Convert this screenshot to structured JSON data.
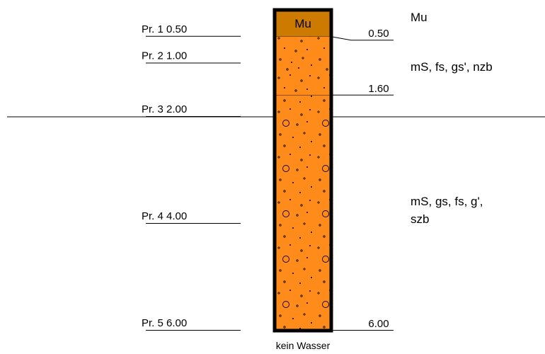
{
  "colors": {
    "topsoil": "#CC7A00",
    "sand": "#FF8C1A",
    "line": "#000000"
  },
  "samples": [
    {
      "name": "Pr. 1",
      "depth": "0.50",
      "depth_m": 0.5
    },
    {
      "name": "Pr. 2",
      "depth": "1.00",
      "depth_m": 1.0
    },
    {
      "name": "Pr. 3",
      "depth": "2.00",
      "depth_m": 2.0
    },
    {
      "name": "Pr. 4",
      "depth": "4.00",
      "depth_m": 4.0
    },
    {
      "name": "Pr. 5",
      "depth": "6.00",
      "depth_m": 6.0
    }
  ],
  "layers": [
    {
      "top_m": 0.0,
      "bottom_m": 0.5,
      "code": "Mu",
      "fill": "topsoil",
      "pattern": "none",
      "bottom_label": "0.50",
      "description": [
        "Mu"
      ]
    },
    {
      "top_m": 0.5,
      "bottom_m": 1.6,
      "code": "",
      "fill": "sand",
      "pattern": "dots",
      "bottom_label": "1.60",
      "description": [
        "mS, fs, gs', nzb"
      ]
    },
    {
      "top_m": 1.6,
      "bottom_m": 6.0,
      "code": "",
      "fill": "sand",
      "pattern": "dots-gravel",
      "bottom_label": "6.00",
      "description": [
        "mS, gs, fs, g',",
        "szb"
      ]
    }
  ],
  "water_level_m": 2.0,
  "water_note": "kein Wasser"
}
